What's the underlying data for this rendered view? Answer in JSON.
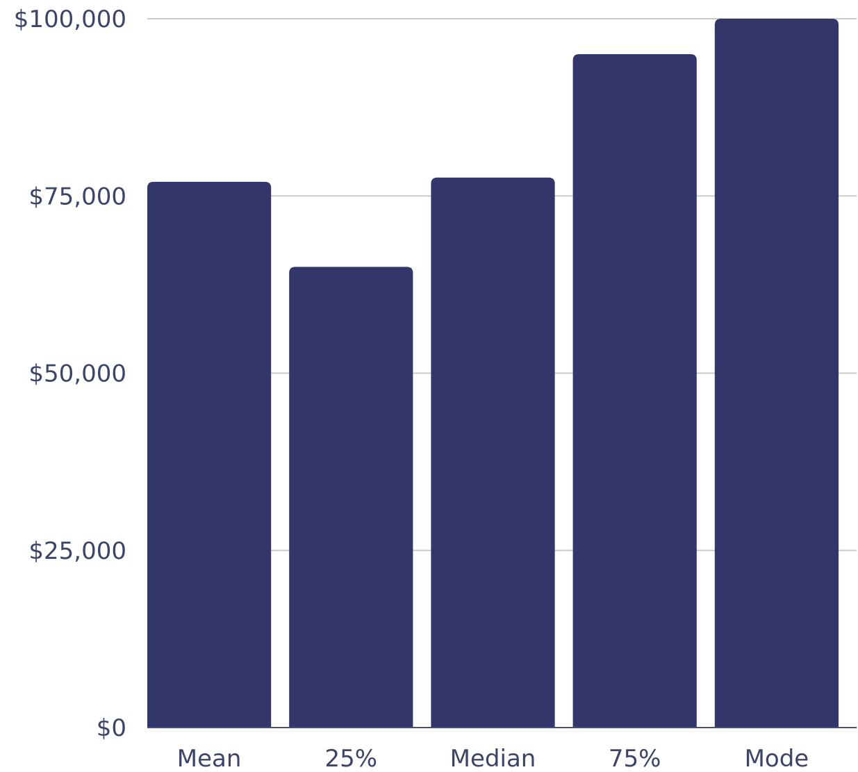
{
  "chart_data": {
    "type": "bar",
    "title": "",
    "xlabel": "",
    "ylabel": "",
    "categories": [
      "Mean",
      "25%",
      "Median",
      "75%",
      "Mode"
    ],
    "values": [
      77000,
      65000,
      77600,
      95000,
      100000
    ],
    "ylim": [
      0,
      100000
    ],
    "yticks": [
      0,
      25000,
      50000,
      75000,
      100000
    ],
    "ytick_labels": [
      "$0",
      "$25,000",
      "$50,000",
      "$75,000",
      "$100,000"
    ],
    "grid": true,
    "legend": "none",
    "bar_color": "#32366b",
    "grid_color": "#c9cbcf",
    "label_color": "#3d4468"
  }
}
